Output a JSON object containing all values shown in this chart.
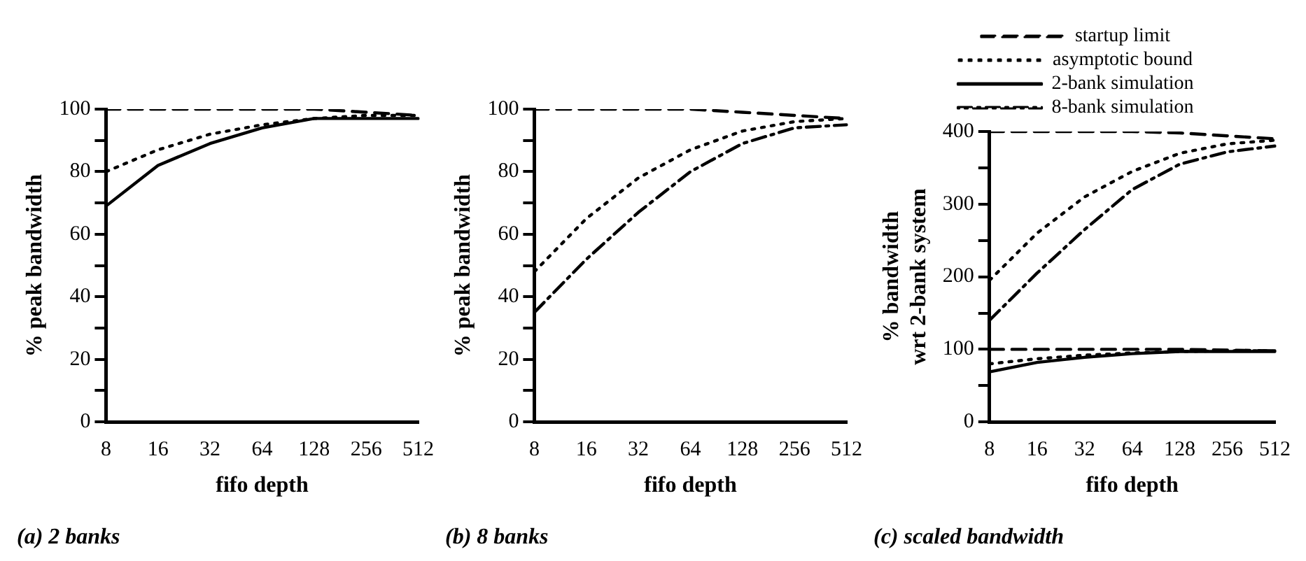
{
  "chart_data": [
    {
      "type": "line",
      "title": "(a) 2 banks",
      "xlabel": "fifo depth",
      "ylabel": "% peak bandwidth",
      "categories": [
        "8",
        "16",
        "32",
        "64",
        "128",
        "256",
        "512"
      ],
      "ylim": [
        0,
        100
      ],
      "yticks": [
        0,
        {
          "value": 10,
          "label": null
        },
        20,
        {
          "value": 30,
          "label": null
        },
        40,
        {
          "value": 50,
          "label": null
        },
        60,
        {
          "value": 70,
          "label": null
        },
        80,
        {
          "value": 90,
          "label": null
        },
        100
      ],
      "grid": false,
      "marker": "none",
      "series": [
        {
          "color": "#000000",
          "line_style": "dashed",
          "values": [
            100,
            100,
            100,
            100,
            100,
            99,
            98
          ]
        },
        {
          "color": "#000000",
          "line_style": "dotted",
          "values": [
            80,
            87,
            92,
            95,
            97,
            98,
            98
          ]
        },
        {
          "color": "#000000",
          "line_style": "solid",
          "values": [
            69,
            82,
            89,
            94,
            97,
            97,
            97
          ]
        }
      ]
    },
    {
      "type": "line",
      "title": "(b) 8 banks",
      "xlabel": "fifo depth",
      "ylabel": "% peak bandwidth",
      "categories": [
        "8",
        "16",
        "32",
        "64",
        "128",
        "256",
        "512"
      ],
      "ylim": [
        0,
        100
      ],
      "yticks": [
        0,
        {
          "value": 10,
          "label": null
        },
        20,
        {
          "value": 30,
          "label": null
        },
        40,
        {
          "value": 50,
          "label": null
        },
        60,
        {
          "value": 70,
          "label": null
        },
        80,
        {
          "value": 90,
          "label": null
        },
        100
      ],
      "grid": false,
      "marker": "none",
      "series": [
        {
          "color": "#000000",
          "line_style": "dashed",
          "values": [
            100,
            100,
            100,
            100,
            99,
            98,
            97
          ]
        },
        {
          "color": "#000000",
          "line_style": "dotted",
          "values": [
            48,
            65,
            78,
            87,
            93,
            96,
            97
          ]
        },
        {
          "color": "#000000",
          "line_style": "dashdot",
          "values": [
            35,
            52,
            67,
            80,
            89,
            94,
            95
          ]
        }
      ]
    },
    {
      "type": "line",
      "title": "(c) scaled bandwidth",
      "xlabel": "fifo depth",
      "ylabel": "% bandwidth\nwrt 2-bank system",
      "categories": [
        "8",
        "16",
        "32",
        "64",
        "128",
        "256",
        "512"
      ],
      "ylim": [
        0,
        400
      ],
      "yticks": [
        0,
        {
          "value": 50,
          "label": null
        },
        100,
        {
          "value": 150,
          "label": null
        },
        200,
        {
          "value": 250,
          "label": null
        },
        300,
        {
          "value": 350,
          "label": null
        },
        400
      ],
      "grid": false,
      "legend": "top",
      "marker": "none",
      "series": [
        {
          "name": "startup limit",
          "color": "#000000",
          "line_style": "dashed",
          "values": [
            400,
            400,
            400,
            400,
            398,
            394,
            390
          ]
        },
        {
          "name": "asymptotic bound",
          "color": "#000000",
          "line_style": "dotted",
          "values": [
            195,
            260,
            310,
            345,
            370,
            383,
            388
          ]
        },
        {
          "name": "2-bank simulation",
          "color": "#000000",
          "line_style": "solid",
          "values": [
            69,
            82,
            89,
            94,
            97,
            97,
            97
          ]
        },
        {
          "name": "8-bank simulation",
          "color": "#000000",
          "line_style": "dashdot",
          "values": [
            140,
            205,
            265,
            320,
            355,
            372,
            380
          ]
        },
        {
          "color": "#000000",
          "line_style": "dashed",
          "values": [
            100,
            100,
            100,
            100,
            100,
            99,
            98
          ]
        },
        {
          "color": "#000000",
          "line_style": "dotted",
          "values": [
            80,
            87,
            92,
            95,
            97,
            98,
            98
          ]
        }
      ]
    }
  ]
}
